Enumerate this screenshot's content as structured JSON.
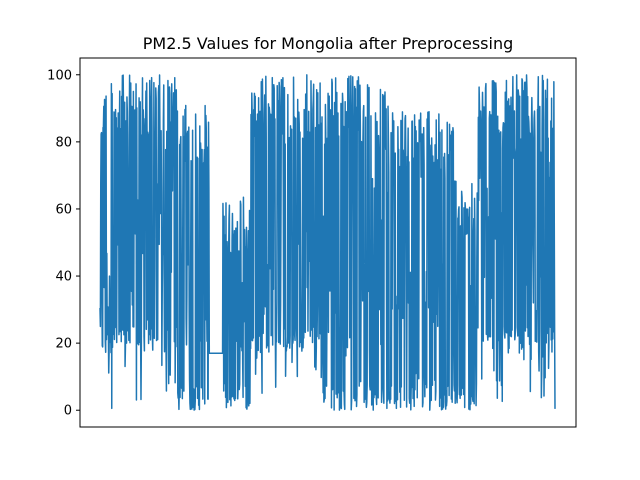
{
  "chart_data": {
    "type": "line",
    "title": "PM2.5 Values for Mongolia after Preprocessing",
    "xlabel": "",
    "ylabel": "",
    "ylim": [
      -5,
      105
    ],
    "yticks": [
      0,
      20,
      40,
      60,
      80,
      100
    ],
    "xticks": [],
    "grid": false,
    "legend": "none",
    "line_color": "#1f77b4",
    "n_points": 1200,
    "series": [
      {
        "name": "",
        "segments": [
          {
            "from": 0.0,
            "to": 0.17,
            "min": 0,
            "max": 100,
            "floor": 17
          },
          {
            "from": 0.17,
            "to": 0.24,
            "min": 0,
            "max": 91,
            "floor": 0
          },
          {
            "from": 0.24,
            "to": 0.27,
            "min": 17,
            "max": 17,
            "floor": 17
          },
          {
            "from": 0.27,
            "to": 0.33,
            "min": 0,
            "max": 64,
            "floor": 0
          },
          {
            "from": 0.33,
            "to": 0.49,
            "min": 5,
            "max": 100,
            "floor": 17
          },
          {
            "from": 0.49,
            "to": 0.64,
            "min": 0,
            "max": 100,
            "floor": 0
          },
          {
            "from": 0.64,
            "to": 0.78,
            "min": 0,
            "max": 89,
            "floor": 0
          },
          {
            "from": 0.78,
            "to": 0.83,
            "min": 0,
            "max": 70,
            "floor": 0
          },
          {
            "from": 0.83,
            "to": 1.0,
            "min": 0,
            "max": 100,
            "floor": 17
          }
        ]
      }
    ]
  }
}
